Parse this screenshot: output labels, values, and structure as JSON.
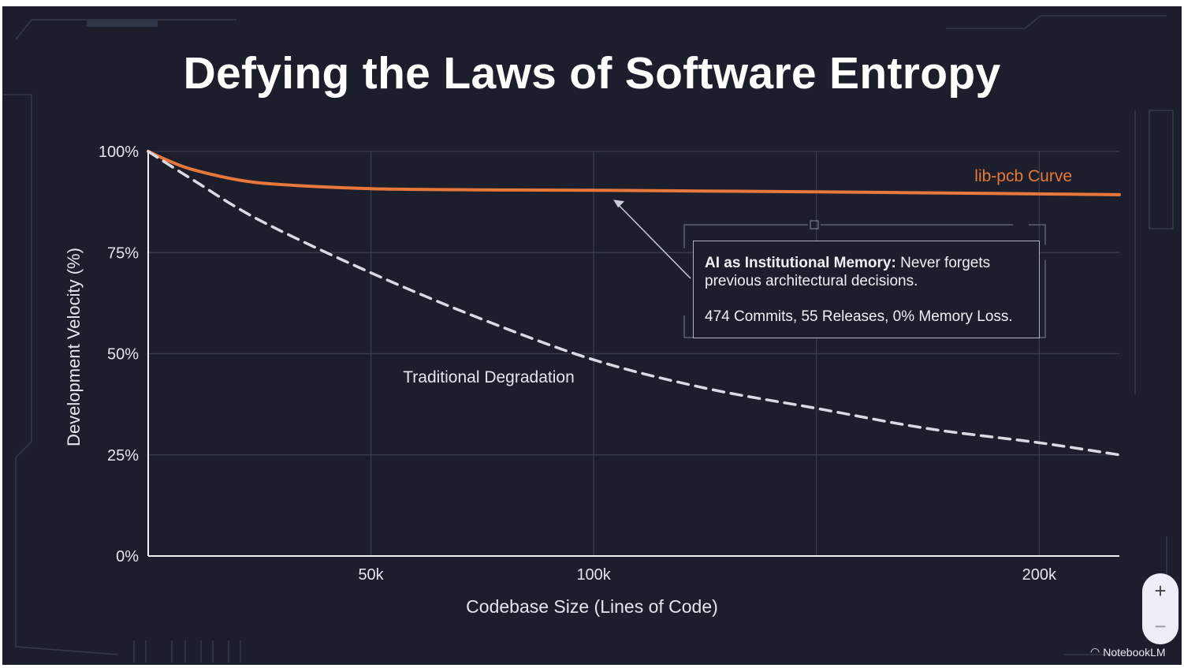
{
  "title": "Defying the Laws of Software Entropy",
  "chart_data": {
    "type": "line",
    "title": "Defying the Laws of Software Entropy",
    "xlabel": "Codebase Size (Lines of Code)",
    "ylabel": "Development Velocity (%)",
    "xlim": [
      0,
      218000
    ],
    "ylim": [
      0,
      100
    ],
    "x_ticks": [
      {
        "value": 50000,
        "label": "50k"
      },
      {
        "value": 100000,
        "label": "100k"
      },
      {
        "value": 150000,
        "label": ""
      },
      {
        "value": 200000,
        "label": "200k"
      }
    ],
    "y_ticks": [
      {
        "value": 0,
        "label": "0%"
      },
      {
        "value": 25,
        "label": "25%"
      },
      {
        "value": 50,
        "label": "50%"
      },
      {
        "value": 75,
        "label": "75%"
      },
      {
        "value": 100,
        "label": "100%"
      }
    ],
    "grid": true,
    "series": [
      {
        "name": "lib-pcb Curve",
        "color": "#e8783a",
        "style": "solid",
        "x": [
          0,
          5000,
          10000,
          20000,
          30000,
          50000,
          75000,
          100000,
          150000,
          200000,
          218000
        ],
        "y": [
          100,
          97.5,
          95.5,
          93,
          91.8,
          90.8,
          90.5,
          90.4,
          90,
          89.5,
          89.3
        ]
      },
      {
        "name": "Traditional Degradation",
        "color": "#d8dbe2",
        "style": "dashed",
        "x": [
          0,
          10000,
          25000,
          50000,
          75000,
          100000,
          125000,
          150000,
          175000,
          200000,
          218000
        ],
        "y": [
          100,
          93,
          83,
          70,
          58.5,
          48.5,
          41.5,
          36.5,
          31.5,
          28,
          25
        ]
      }
    ],
    "annotation": {
      "heading": "AI as Institutional Memory:",
      "text": "Never forgets previous architectural decisions.",
      "stats": "474 Commits, 55 Releases, 0% Memory Loss.",
      "points_to": {
        "x": 100000,
        "y": 90.4
      }
    }
  },
  "controls": {
    "zoom_in": "+",
    "zoom_out": "−"
  },
  "brand": "NotebookLM",
  "colors": {
    "background": "#1c1f2b",
    "accent": "#e8783a",
    "grid": "#3a3f4d"
  }
}
